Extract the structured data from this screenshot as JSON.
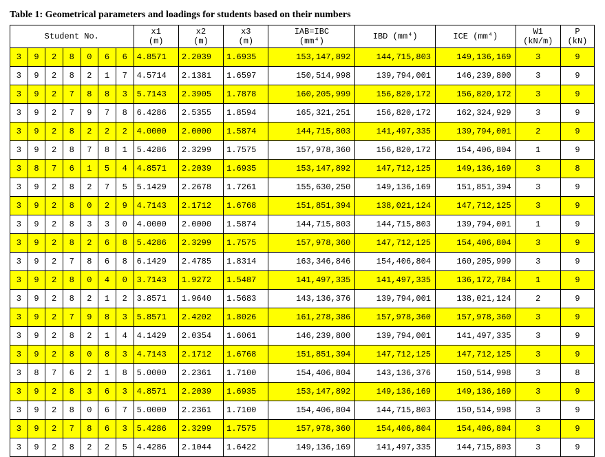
{
  "caption": "Table 1: Geometrical parameters and loadings for students based on their numbers",
  "headers": {
    "student": "Student No.",
    "x1": "x1",
    "x2": "x2",
    "x3": "x3",
    "iab": "IAB=IBC",
    "ibd": "IBD (mm⁴)",
    "ice": "ICE (mm⁴)",
    "w1": "W1",
    "p": "P"
  },
  "units": {
    "x1": "(m)",
    "x2": "(m)",
    "x3": "(m)",
    "iab": "(mm⁴)",
    "w1": "(kN/m)",
    "p": "(kN)"
  },
  "rows": [
    {
      "hl": true,
      "d": [
        "3",
        "9",
        "2",
        "8",
        "0",
        "6",
        "6"
      ],
      "x1": "4.8571",
      "x2": "2.2039",
      "x3": "1.6935",
      "iab": "153,147,892",
      "ibd": "144,715,803",
      "ice": "149,136,169",
      "w1": "3",
      "p": "9"
    },
    {
      "hl": false,
      "d": [
        "3",
        "9",
        "2",
        "8",
        "2",
        "1",
        "7"
      ],
      "x1": "4.5714",
      "x2": "2.1381",
      "x3": "1.6597",
      "iab": "150,514,998",
      "ibd": "139,794,001",
      "ice": "146,239,800",
      "w1": "3",
      "p": "9"
    },
    {
      "hl": true,
      "d": [
        "3",
        "9",
        "2",
        "7",
        "8",
        "8",
        "3"
      ],
      "x1": "5.7143",
      "x2": "2.3905",
      "x3": "1.7878",
      "iab": "160,205,999",
      "ibd": "156,820,172",
      "ice": "156,820,172",
      "w1": "3",
      "p": "9"
    },
    {
      "hl": false,
      "d": [
        "3",
        "9",
        "2",
        "7",
        "9",
        "7",
        "8"
      ],
      "x1": "6.4286",
      "x2": "2.5355",
      "x3": "1.8594",
      "iab": "165,321,251",
      "ibd": "156,820,172",
      "ice": "162,324,929",
      "w1": "3",
      "p": "9"
    },
    {
      "hl": true,
      "d": [
        "3",
        "9",
        "2",
        "8",
        "2",
        "2",
        "2"
      ],
      "x1": "4.0000",
      "x2": "2.0000",
      "x3": "1.5874",
      "iab": "144,715,803",
      "ibd": "141,497,335",
      "ice": "139,794,001",
      "w1": "2",
      "p": "9"
    },
    {
      "hl": false,
      "d": [
        "3",
        "9",
        "2",
        "8",
        "7",
        "8",
        "1"
      ],
      "x1": "5.4286",
      "x2": "2.3299",
      "x3": "1.7575",
      "iab": "157,978,360",
      "ibd": "156,820,172",
      "ice": "154,406,804",
      "w1": "1",
      "p": "9"
    },
    {
      "hl": true,
      "d": [
        "3",
        "8",
        "7",
        "6",
        "1",
        "5",
        "4"
      ],
      "x1": "4.8571",
      "x2": "2.2039",
      "x3": "1.6935",
      "iab": "153,147,892",
      "ibd": "147,712,125",
      "ice": "149,136,169",
      "w1": "3",
      "p": "8"
    },
    {
      "hl": false,
      "d": [
        "3",
        "9",
        "2",
        "8",
        "2",
        "7",
        "5"
      ],
      "x1": "5.1429",
      "x2": "2.2678",
      "x3": "1.7261",
      "iab": "155,630,250",
      "ibd": "149,136,169",
      "ice": "151,851,394",
      "w1": "3",
      "p": "9"
    },
    {
      "hl": true,
      "d": [
        "3",
        "9",
        "2",
        "8",
        "0",
        "2",
        "9"
      ],
      "x1": "4.7143",
      "x2": "2.1712",
      "x3": "1.6768",
      "iab": "151,851,394",
      "ibd": "138,021,124",
      "ice": "147,712,125",
      "w1": "3",
      "p": "9"
    },
    {
      "hl": false,
      "d": [
        "3",
        "9",
        "2",
        "8",
        "3",
        "3",
        "0"
      ],
      "x1": "4.0000",
      "x2": "2.0000",
      "x3": "1.5874",
      "iab": "144,715,803",
      "ibd": "144,715,803",
      "ice": "139,794,001",
      "w1": "1",
      "p": "9"
    },
    {
      "hl": true,
      "d": [
        "3",
        "9",
        "2",
        "8",
        "2",
        "6",
        "8"
      ],
      "x1": "5.4286",
      "x2": "2.3299",
      "x3": "1.7575",
      "iab": "157,978,360",
      "ibd": "147,712,125",
      "ice": "154,406,804",
      "w1": "3",
      "p": "9"
    },
    {
      "hl": false,
      "d": [
        "3",
        "9",
        "2",
        "7",
        "8",
        "6",
        "8"
      ],
      "x1": "6.1429",
      "x2": "2.4785",
      "x3": "1.8314",
      "iab": "163,346,846",
      "ibd": "154,406,804",
      "ice": "160,205,999",
      "w1": "3",
      "p": "9"
    },
    {
      "hl": true,
      "d": [
        "3",
        "9",
        "2",
        "8",
        "0",
        "4",
        "0"
      ],
      "x1": "3.7143",
      "x2": "1.9272",
      "x3": "1.5487",
      "iab": "141,497,335",
      "ibd": "141,497,335",
      "ice": "136,172,784",
      "w1": "1",
      "p": "9"
    },
    {
      "hl": false,
      "d": [
        "3",
        "9",
        "2",
        "8",
        "2",
        "1",
        "2"
      ],
      "x1": "3.8571",
      "x2": "1.9640",
      "x3": "1.5683",
      "iab": "143,136,376",
      "ibd": "139,794,001",
      "ice": "138,021,124",
      "w1": "2",
      "p": "9"
    },
    {
      "hl": true,
      "d": [
        "3",
        "9",
        "2",
        "7",
        "9",
        "8",
        "3"
      ],
      "x1": "5.8571",
      "x2": "2.4202",
      "x3": "1.8026",
      "iab": "161,278,386",
      "ibd": "157,978,360",
      "ice": "157,978,360",
      "w1": "3",
      "p": "9"
    },
    {
      "hl": false,
      "d": [
        "3",
        "9",
        "2",
        "8",
        "2",
        "1",
        "4"
      ],
      "x1": "4.1429",
      "x2": "2.0354",
      "x3": "1.6061",
      "iab": "146,239,800",
      "ibd": "139,794,001",
      "ice": "141,497,335",
      "w1": "3",
      "p": "9"
    },
    {
      "hl": true,
      "d": [
        "3",
        "9",
        "2",
        "8",
        "0",
        "8",
        "3"
      ],
      "x1": "4.7143",
      "x2": "2.1712",
      "x3": "1.6768",
      "iab": "151,851,394",
      "ibd": "147,712,125",
      "ice": "147,712,125",
      "w1": "3",
      "p": "9"
    },
    {
      "hl": false,
      "d": [
        "3",
        "8",
        "7",
        "6",
        "2",
        "1",
        "8"
      ],
      "x1": "5.0000",
      "x2": "2.2361",
      "x3": "1.7100",
      "iab": "154,406,804",
      "ibd": "143,136,376",
      "ice": "150,514,998",
      "w1": "3",
      "p": "8"
    },
    {
      "hl": true,
      "d": [
        "3",
        "9",
        "2",
        "8",
        "3",
        "6",
        "3"
      ],
      "x1": "4.8571",
      "x2": "2.2039",
      "x3": "1.6935",
      "iab": "153,147,892",
      "ibd": "149,136,169",
      "ice": "149,136,169",
      "w1": "3",
      "p": "9"
    },
    {
      "hl": false,
      "d": [
        "3",
        "9",
        "2",
        "8",
        "0",
        "6",
        "7"
      ],
      "x1": "5.0000",
      "x2": "2.2361",
      "x3": "1.7100",
      "iab": "154,406,804",
      "ibd": "144,715,803",
      "ice": "150,514,998",
      "w1": "3",
      "p": "9"
    },
    {
      "hl": true,
      "d": [
        "3",
        "9",
        "2",
        "7",
        "8",
        "6",
        "3"
      ],
      "x1": "5.4286",
      "x2": "2.3299",
      "x3": "1.7575",
      "iab": "157,978,360",
      "ibd": "154,406,804",
      "ice": "154,406,804",
      "w1": "3",
      "p": "9"
    },
    {
      "hl": false,
      "d": [
        "3",
        "9",
        "2",
        "8",
        "2",
        "2",
        "5"
      ],
      "x1": "4.4286",
      "x2": "2.1044",
      "x3": "1.6422",
      "iab": "149,136,169",
      "ibd": "141,497,335",
      "ice": "144,715,803",
      "w1": "3",
      "p": "9"
    }
  ],
  "highlight_color": "#ffff00"
}
